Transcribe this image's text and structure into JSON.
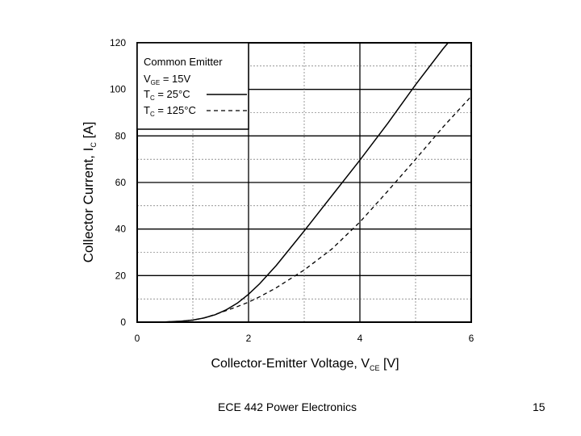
{
  "chart_data": {
    "type": "line",
    "xlabel_main": "Collector-Emitter Voltage, V",
    "xlabel_sub": "CE",
    "xlabel_unit": " [V]",
    "ylabel_main": "Collector Current, I",
    "ylabel_sub": "C",
    "ylabel_unit": " [A]",
    "xlim": [
      0,
      6
    ],
    "ylim": [
      0,
      120
    ],
    "x_ticks": [
      0,
      2,
      4,
      6
    ],
    "y_ticks": [
      0,
      20,
      40,
      60,
      80,
      100,
      120
    ],
    "grid": true,
    "legend_position": "top-left",
    "legend": {
      "title": "Common Emitter",
      "vge_main": "V",
      "vge_sub": "GE",
      "vge_value": " = 15V",
      "series_label_main": "T",
      "series_label_sub": "C"
    },
    "series": [
      {
        "name": " =   25°C",
        "style": "solid",
        "x": [
          0,
          0.5,
          0.8,
          1.0,
          1.2,
          1.4,
          1.6,
          1.8,
          2.0,
          2.2,
          2.5,
          3.0,
          3.5,
          4.0,
          4.5,
          5.0,
          5.5,
          5.8
        ],
        "y": [
          0,
          0.1,
          0.4,
          0.9,
          1.8,
          3.2,
          5.3,
          8.2,
          12,
          16.5,
          24.4,
          39.2,
          54.4,
          69.6,
          85.4,
          102,
          117.6,
          126
        ]
      },
      {
        "name": " = 125°C",
        "style": "dashed",
        "x": [
          0,
          0.5,
          0.8,
          1.0,
          1.2,
          1.4,
          1.6,
          1.8,
          2.0,
          2.2,
          2.5,
          3.0,
          3.5,
          4.0,
          4.5,
          5.0,
          5.5,
          6.0
        ],
        "y": [
          0,
          0.1,
          0.4,
          0.9,
          1.8,
          3.3,
          5.0,
          6.7,
          8.6,
          10.9,
          14.8,
          22.4,
          31.5,
          43,
          56.3,
          70,
          84,
          97
        ]
      }
    ]
  },
  "footer": {
    "title": "ECE 442 Power Electronics",
    "page": "15"
  }
}
